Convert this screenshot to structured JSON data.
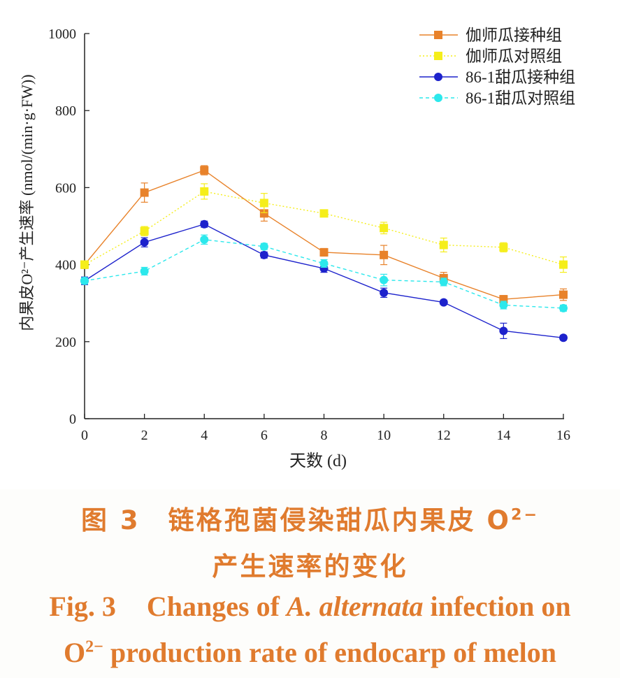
{
  "chart_data": {
    "type": "line",
    "xlabel": "天数 (d)",
    "ylabel": "内果皮O²⁻产生速率 (nmol/(min·g·FW))",
    "x": [
      0,
      2,
      4,
      6,
      8,
      10,
      12,
      14,
      16
    ],
    "xlim": [
      0,
      16
    ],
    "ylim": [
      0,
      1000
    ],
    "xticks": [
      0,
      2,
      4,
      6,
      8,
      10,
      12,
      14,
      16
    ],
    "yticks": [
      0,
      200,
      400,
      600,
      800,
      1000
    ],
    "grid": false,
    "legend_position": "top-right",
    "series": [
      {
        "name": "伽师瓜接种组",
        "color": "#e8822a",
        "marker": "square",
        "line": "solid",
        "values": [
          400,
          587,
          645,
          533,
          432,
          425,
          365,
          310,
          322
        ],
        "errors": [
          10,
          25,
          12,
          20,
          10,
          25,
          15,
          10,
          15
        ]
      },
      {
        "name": "伽师瓜对照组",
        "color": "#f5ee1a",
        "marker": "square",
        "line": "dotted",
        "values": [
          400,
          487,
          590,
          560,
          533,
          495,
          451,
          445,
          400
        ],
        "errors": [
          10,
          12,
          20,
          25,
          8,
          15,
          18,
          12,
          20
        ]
      },
      {
        "name": "86-1甜瓜接种组",
        "color": "#1d22cc",
        "marker": "circle",
        "line": "solid",
        "values": [
          358,
          458,
          505,
          425,
          390,
          327,
          302,
          228,
          210
        ],
        "errors": [
          10,
          12,
          8,
          8,
          10,
          12,
          6,
          20,
          6
        ]
      },
      {
        "name": "86-1甜瓜对照组",
        "color": "#2ce8ec",
        "marker": "circle",
        "line": "dashed",
        "values": [
          358,
          383,
          465,
          447,
          403,
          360,
          355,
          295,
          287
        ],
        "errors": [
          8,
          10,
          12,
          8,
          10,
          15,
          10,
          10,
          8
        ]
      }
    ]
  },
  "caption": {
    "cn_line1_prefix": "图 3",
    "cn_line1_text": "链格孢菌侵染甜瓜内果皮 O",
    "cn_line1_sup": "2−",
    "cn_line2": "产生速率的变化",
    "en_line1_prefix": "Fig. 3",
    "en_line1_pre": "Changes of ",
    "en_line1_italic": "A. alternata",
    "en_line1_post": " infection on",
    "en_line2_o": "O",
    "en_line2_sup": "2−",
    "en_line2_rest": " production rate of endocarp of melon"
  }
}
